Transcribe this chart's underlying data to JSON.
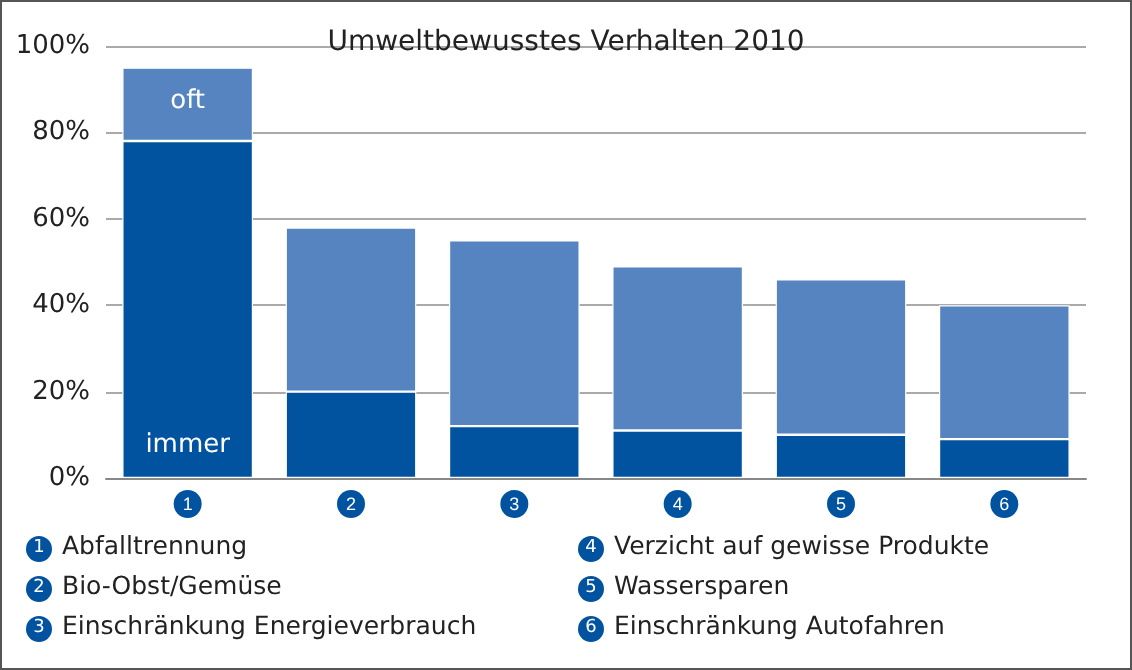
{
  "chart_data": {
    "type": "bar",
    "title": "Umweltbewusstes Verhalten 2010",
    "stacked": true,
    "categories": [
      "1",
      "2",
      "3",
      "4",
      "5",
      "6"
    ],
    "series": [
      {
        "name": "immer",
        "color": "#0153a0",
        "values": [
          78,
          20,
          12,
          11,
          10,
          9
        ]
      },
      {
        "name": "oft",
        "color": "#5584c1",
        "values": [
          17,
          38,
          43,
          38,
          36,
          31
        ]
      }
    ],
    "ylim": [
      0,
      100
    ],
    "yticks": [
      {
        "value": 0,
        "label": "0%"
      },
      {
        "value": 20,
        "label": "20%"
      },
      {
        "value": 40,
        "label": "40%"
      },
      {
        "value": 60,
        "label": "60%"
      },
      {
        "value": 80,
        "label": "80%"
      },
      {
        "value": 100,
        "label": "100%"
      }
    ],
    "grid": "y",
    "legend": false,
    "annotations": [
      "Abfalltrennung",
      "Bio-Obst/Gemüse",
      "Einschränkung Energieverbrauch",
      "Verzicht auf gewisse Produkte",
      "Wassersparen",
      "Einschränkung Autofahren"
    ]
  }
}
